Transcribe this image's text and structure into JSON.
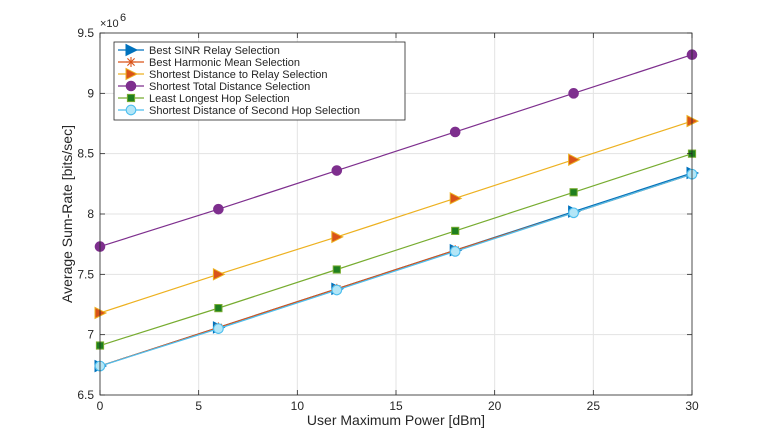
{
  "chart_data": {
    "type": "line",
    "title": "",
    "xlabel": "User Maximum Power [dBm]",
    "ylabel": "Average Sum-Rate [bits/sec]",
    "y_multiplier_base": "×10",
    "y_multiplier_exp": "6",
    "xlim": [
      0,
      30
    ],
    "ylim": [
      6.5,
      9.5
    ],
    "xticks": [
      0,
      5,
      10,
      15,
      20,
      25,
      30
    ],
    "xtick_labels": [
      "0",
      "5",
      "10",
      "15",
      "20",
      "25",
      "30"
    ],
    "yticks": [
      6.5,
      7,
      7.5,
      8,
      8.5,
      9,
      9.5
    ],
    "ytick_labels": [
      "6.5",
      "7",
      "7.5",
      "8",
      "8.5",
      "9",
      "9.5"
    ],
    "grid": true,
    "legend_position": "top-left",
    "x": [
      0,
      6,
      12,
      18,
      24,
      30
    ],
    "series": [
      {
        "name": "Best SINR Relay Selection",
        "color": "#0072BD",
        "marker": "triangle-right",
        "values": [
          6.74,
          7.06,
          7.38,
          7.7,
          8.02,
          8.34
        ]
      },
      {
        "name": "Best Harmonic Mean Selection",
        "color": "#D95319",
        "marker": "asterisk",
        "values": [
          6.74,
          7.06,
          7.38,
          7.7,
          8.01,
          8.33
        ]
      },
      {
        "name": "Shortest Distance to Relay Selection",
        "color": "#EDB120",
        "marker": "triangle-right-filled",
        "values": [
          7.18,
          7.5,
          7.81,
          8.13,
          8.45,
          8.77
        ]
      },
      {
        "name": "Shortest Total Distance Selection",
        "color": "#7E2F8E",
        "marker": "circle-filled",
        "values": [
          7.73,
          8.04,
          8.36,
          8.68,
          9.0,
          9.32
        ]
      },
      {
        "name": "Least Longest Hop Selection",
        "color": "#77AC30",
        "marker": "square-filled",
        "values": [
          6.91,
          7.22,
          7.54,
          7.86,
          8.18,
          8.5
        ]
      },
      {
        "name": "Shortest Distance of Second Hop Selection",
        "color": "#4DBEEE",
        "marker": "circle-open",
        "values": [
          6.74,
          7.05,
          7.37,
          7.69,
          8.01,
          8.33
        ]
      }
    ]
  }
}
